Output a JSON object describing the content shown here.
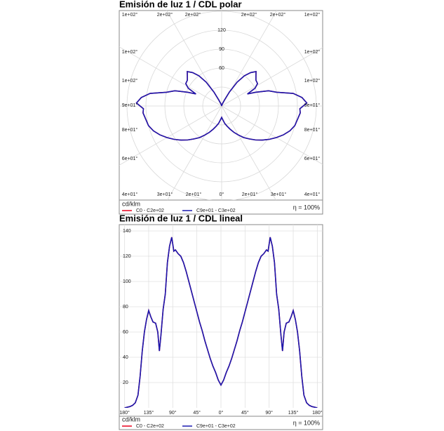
{
  "chart_data": [
    {
      "type": "polar",
      "title": "Emisión de luz 1 / CDL polar",
      "rlim": [
        0,
        150
      ],
      "rticks": [
        60,
        90,
        120
      ],
      "rgrid": [
        30,
        60,
        90,
        120,
        150
      ],
      "agrid": [
        -150,
        -120,
        -90,
        -60,
        -30,
        0,
        30,
        60,
        90,
        120,
        150,
        180
      ],
      "angle_labels": {
        "top": [
          "1e+02°",
          "2e+02°",
          "2e+02°",
          "2e+02°",
          "2e+02°",
          "1e+02°"
        ],
        "left": [
          "1e+02°",
          "1e+02°",
          "9e+01°",
          "8e+01°",
          "6e+01°"
        ],
        "right": [
          "1e+02°",
          "1e+02°",
          "9e+01°",
          "8e+01°",
          "6e+01°"
        ],
        "bottom": [
          "4e+01°",
          "3e+01°",
          "2e+01°",
          "0°",
          "2e+01°",
          "3e+01°",
          "4e+01°"
        ]
      },
      "unit_label": "cd/klm",
      "efficiency": "η = 100%",
      "x": [
        -180,
        -170,
        -165,
        -160,
        -155,
        -151,
        -147,
        -143,
        -139,
        -135,
        -131,
        -127,
        -122,
        -118,
        -115,
        -112,
        -108,
        -104,
        -100,
        -96,
        -92,
        -88,
        -85,
        -80,
        -75,
        -70,
        -65,
        -60,
        -55,
        -50,
        -45,
        -40,
        -35,
        -30,
        -25,
        -20,
        -15,
        -10,
        -5,
        0,
        5,
        10,
        15,
        20,
        25,
        30,
        35,
        40,
        45,
        50,
        55,
        60,
        65,
        70,
        75,
        80,
        85,
        88,
        92,
        96,
        100,
        104,
        108,
        112,
        115,
        118,
        122,
        127,
        131,
        135,
        139,
        143,
        147,
        151,
        155,
        160,
        165,
        170,
        180
      ],
      "series": [
        {
          "name": "C0 - C2e+02",
          "color": "#e8001c",
          "values": [
            0,
            1,
            2,
            4,
            10,
            25,
            45,
            60,
            70,
            77,
            72,
            68,
            67,
            60,
            45,
            58,
            78,
            90,
            115,
            128,
            135,
            124,
            125,
            122,
            120,
            115,
            108,
            100,
            92,
            84,
            76,
            68,
            61,
            53,
            46,
            39,
            33,
            28,
            22,
            18,
            22,
            28,
            33,
            39,
            46,
            53,
            61,
            68,
            76,
            84,
            92,
            100,
            108,
            115,
            120,
            122,
            125,
            124,
            135,
            128,
            115,
            90,
            78,
            58,
            45,
            60,
            67,
            68,
            72,
            77,
            70,
            60,
            45,
            25,
            10,
            4,
            2,
            1,
            0
          ]
        },
        {
          "name": "C9e+01 - C3e+02",
          "color": "#1a1ab0",
          "values": [
            0,
            1,
            2,
            4,
            10,
            25,
            45,
            60,
            70,
            77,
            72,
            68,
            67,
            60,
            45,
            58,
            78,
            90,
            115,
            128,
            135,
            124,
            125,
            122,
            120,
            115,
            108,
            100,
            92,
            84,
            76,
            68,
            61,
            53,
            46,
            39,
            33,
            28,
            22,
            18,
            22,
            28,
            33,
            39,
            46,
            53,
            61,
            68,
            76,
            84,
            92,
            100,
            108,
            115,
            120,
            122,
            125,
            124,
            135,
            128,
            115,
            90,
            78,
            58,
            45,
            60,
            67,
            68,
            72,
            77,
            70,
            60,
            45,
            25,
            10,
            4,
            2,
            1,
            0
          ]
        }
      ]
    },
    {
      "type": "line",
      "title": "Emisión de luz 1 / CDL lineal",
      "xlim": [
        -190,
        190
      ],
      "ylim": [
        0,
        145
      ],
      "xticks": [
        {
          "value": -180,
          "label": "180°"
        },
        {
          "value": -135,
          "label": "135°"
        },
        {
          "value": -90,
          "label": "90°"
        },
        {
          "value": -45,
          "label": "45°"
        },
        {
          "value": 0,
          "label": "0°"
        },
        {
          "value": 45,
          "label": "45°"
        },
        {
          "value": 90,
          "label": "90°"
        },
        {
          "value": 135,
          "label": "135°"
        },
        {
          "value": 180,
          "label": "180°"
        }
      ],
      "yticks": [
        20,
        40,
        60,
        80,
        100,
        120,
        140
      ],
      "grid": true,
      "unit_label": "cd/klm",
      "efficiency": "η = 100%",
      "x": [
        -180,
        -170,
        -165,
        -160,
        -155,
        -151,
        -147,
        -143,
        -139,
        -135,
        -131,
        -127,
        -122,
        -118,
        -115,
        -112,
        -108,
        -104,
        -100,
        -96,
        -92,
        -88,
        -85,
        -80,
        -75,
        -70,
        -65,
        -60,
        -55,
        -50,
        -45,
        -40,
        -35,
        -30,
        -25,
        -20,
        -15,
        -10,
        -5,
        0,
        5,
        10,
        15,
        20,
        25,
        30,
        35,
        40,
        45,
        50,
        55,
        60,
        65,
        70,
        75,
        80,
        85,
        88,
        92,
        96,
        100,
        104,
        108,
        112,
        115,
        118,
        122,
        127,
        131,
        135,
        139,
        143,
        147,
        151,
        155,
        160,
        165,
        170,
        180
      ],
      "series": [
        {
          "name": "C0 - C2e+02",
          "color": "#e8001c",
          "values": [
            0,
            1,
            2,
            4,
            10,
            25,
            45,
            60,
            70,
            77,
            72,
            68,
            67,
            60,
            45,
            58,
            78,
            90,
            115,
            128,
            135,
            124,
            125,
            122,
            120,
            115,
            108,
            100,
            92,
            84,
            76,
            68,
            61,
            53,
            46,
            39,
            33,
            28,
            22,
            18,
            22,
            28,
            33,
            39,
            46,
            53,
            61,
            68,
            76,
            84,
            92,
            100,
            108,
            115,
            120,
            122,
            125,
            124,
            135,
            128,
            115,
            90,
            78,
            58,
            45,
            60,
            67,
            68,
            72,
            77,
            70,
            60,
            45,
            25,
            10,
            4,
            2,
            1,
            0
          ]
        },
        {
          "name": "C9e+01 - C3e+02",
          "color": "#1a1ab0",
          "values": [
            0,
            1,
            2,
            4,
            10,
            25,
            45,
            60,
            70,
            77,
            72,
            68,
            67,
            60,
            45,
            58,
            78,
            90,
            115,
            128,
            135,
            124,
            125,
            122,
            120,
            115,
            108,
            100,
            92,
            84,
            76,
            68,
            61,
            53,
            46,
            39,
            33,
            28,
            22,
            18,
            22,
            28,
            33,
            39,
            46,
            53,
            61,
            68,
            76,
            84,
            92,
            100,
            108,
            115,
            120,
            122,
            125,
            124,
            135,
            128,
            115,
            90,
            78,
            58,
            45,
            60,
            67,
            68,
            72,
            77,
            70,
            60,
            45,
            25,
            10,
            4,
            2,
            1,
            0
          ]
        }
      ]
    }
  ]
}
